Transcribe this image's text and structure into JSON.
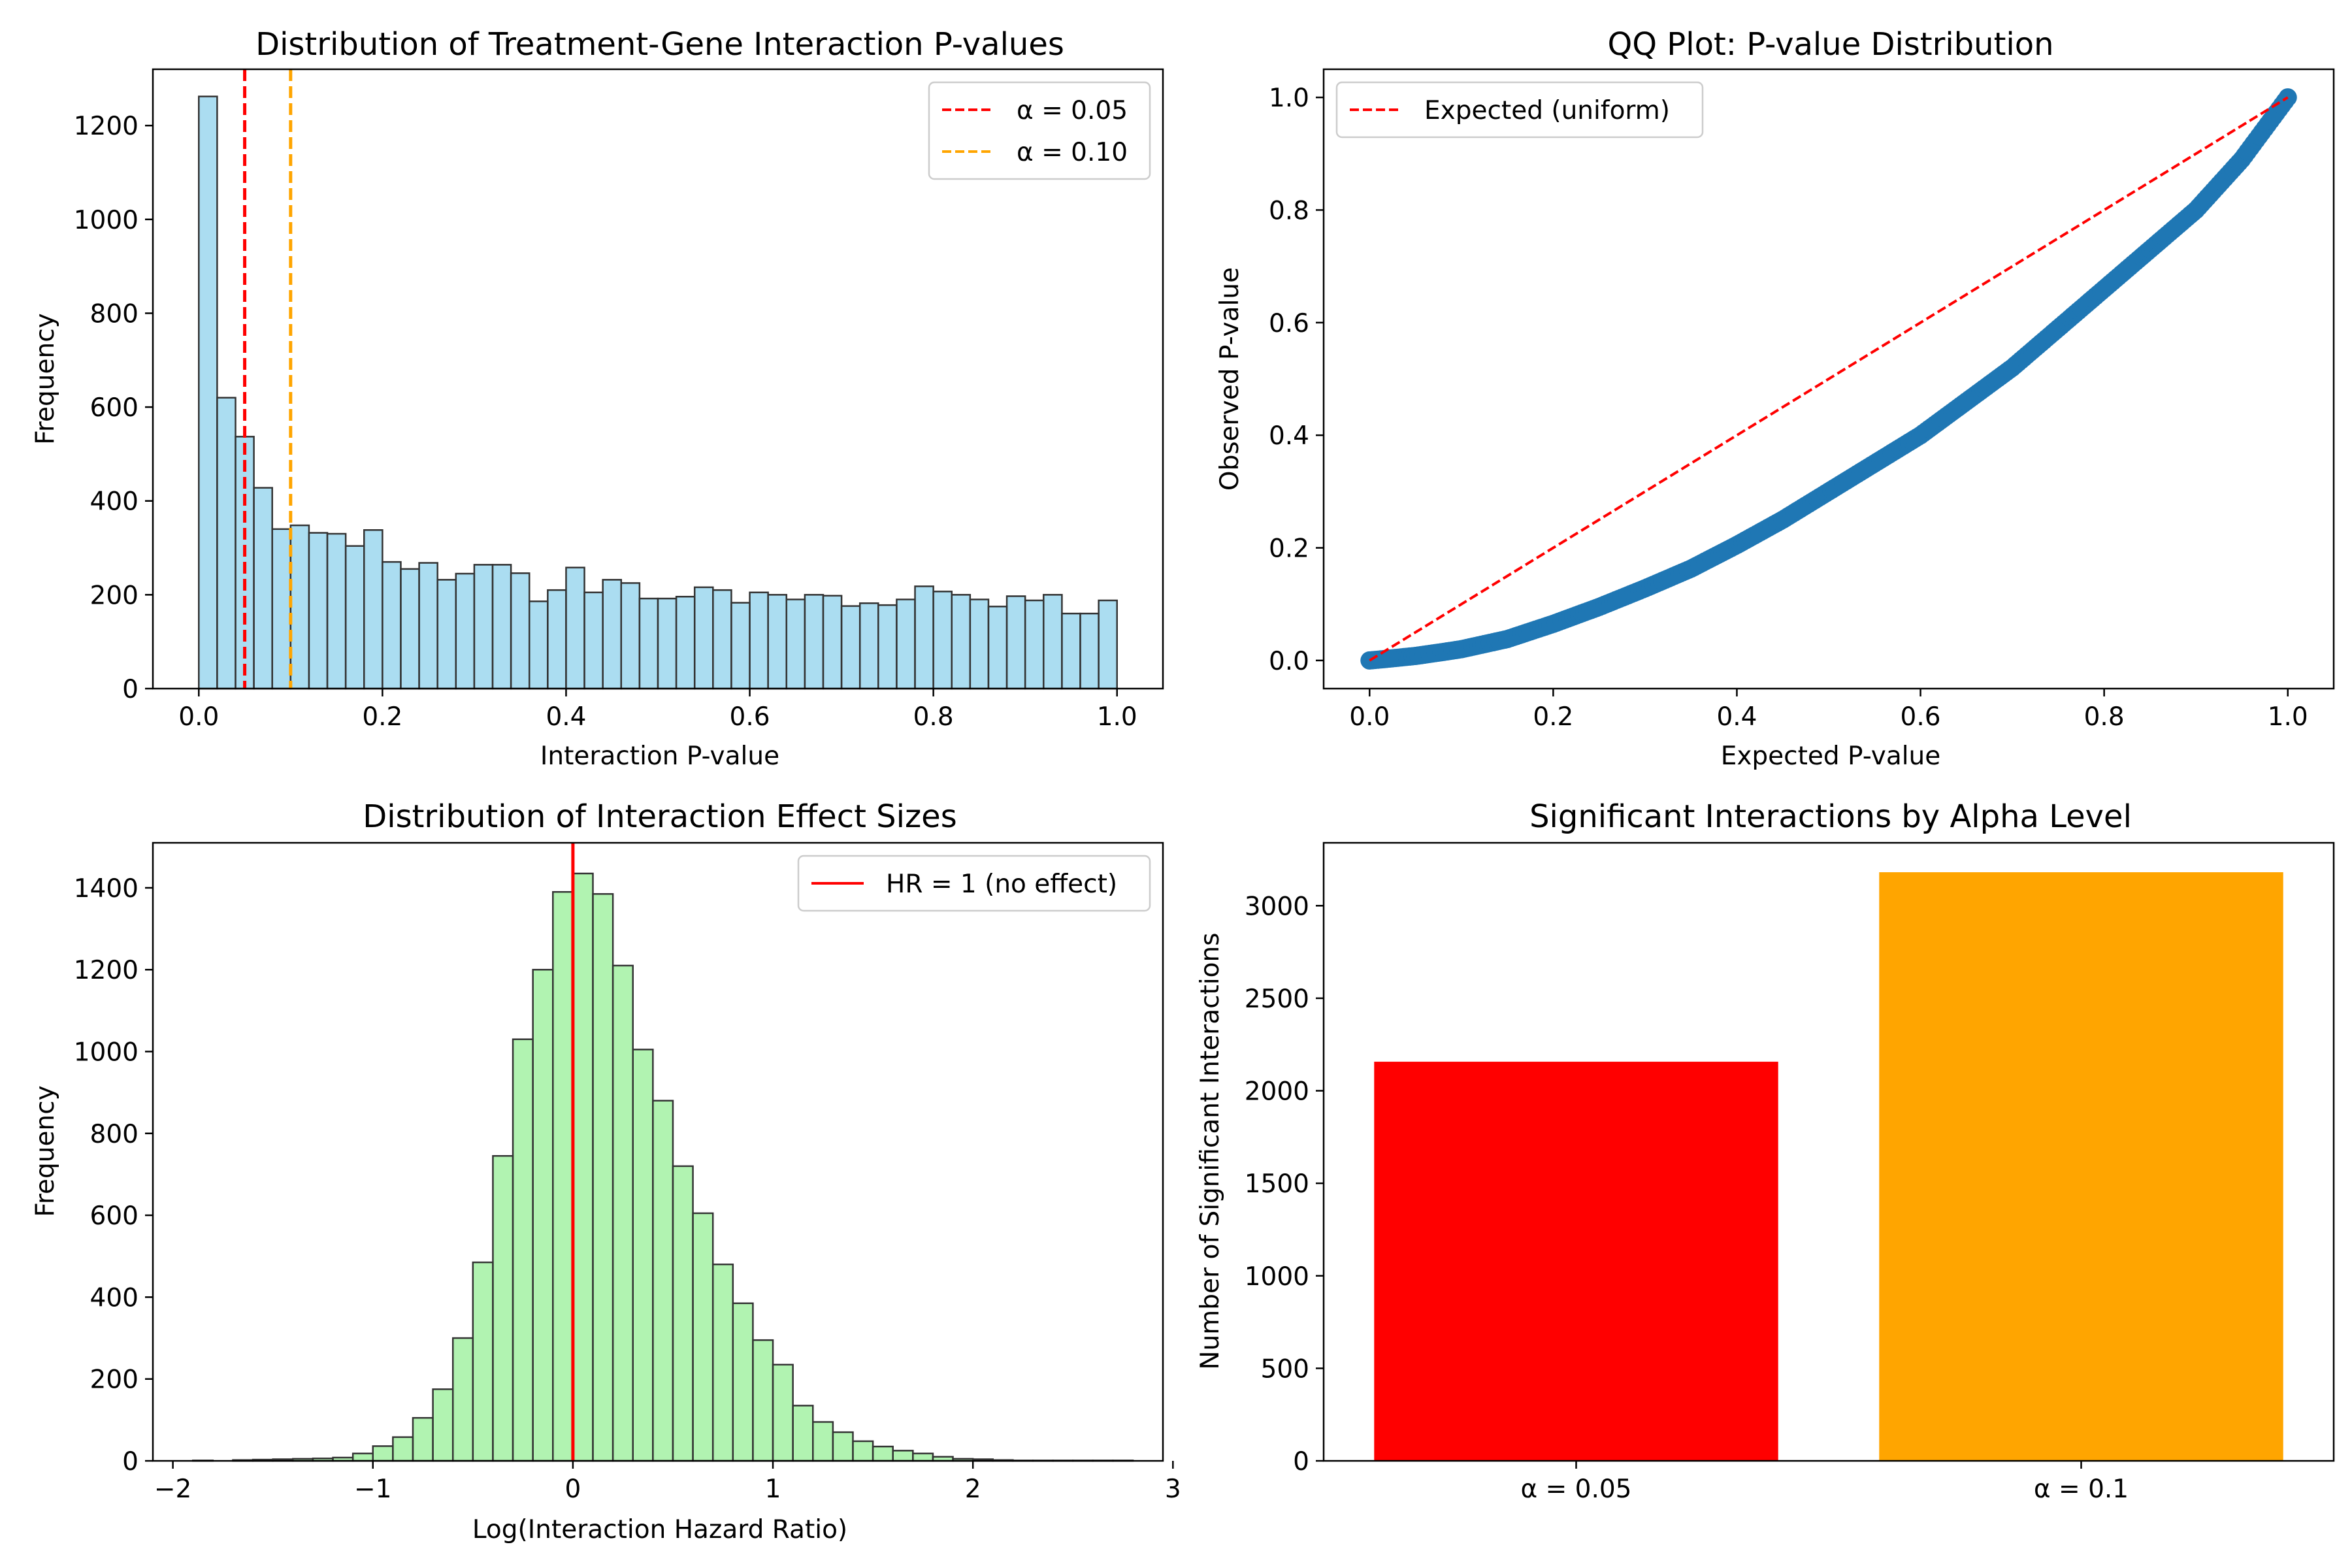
{
  "figure_background": "#ffffff",
  "chart_data": [
    {
      "type": "bar",
      "id": "pvalue-hist",
      "title": "Distribution of Treatment-Gene Interaction P-values",
      "xlabel": "Interaction P-value",
      "ylabel": "Frequency",
      "xlim": [
        -0.05,
        1.05
      ],
      "ylim": [
        0,
        1320
      ],
      "xticks": [
        0.0,
        0.2,
        0.4,
        0.6,
        0.8,
        1.0
      ],
      "xtick_labels": [
        "0.0",
        "0.2",
        "0.4",
        "0.6",
        "0.8",
        "1.0"
      ],
      "yticks": [
        0,
        200,
        400,
        600,
        800,
        1000,
        1200
      ],
      "ytick_labels": [
        "0",
        "200",
        "400",
        "600",
        "800",
        "1000",
        "1200"
      ],
      "bin_start": 0.0,
      "bin_width": 0.02,
      "values": [
        1262,
        620,
        537,
        428,
        340,
        348,
        332,
        330,
        304,
        338,
        270,
        255,
        268,
        232,
        245,
        264,
        264,
        246,
        186,
        210,
        258,
        205,
        232,
        225,
        192,
        192,
        196,
        216,
        210,
        183,
        205,
        200,
        190,
        200,
        198,
        176,
        182,
        178,
        190,
        218,
        207,
        200,
        190,
        175,
        197,
        188,
        200,
        160,
        160,
        188
      ],
      "bar_color": "#87ceeb",
      "edge_color": "#333333",
      "vlines": [
        {
          "x": 0.05,
          "color": "#ff0000",
          "style": "dashed",
          "label": "α = 0.05"
        },
        {
          "x": 0.1,
          "color": "#ffa500",
          "style": "dashed",
          "label": "α = 0.10"
        }
      ],
      "legend_position": "upper right",
      "grid": false
    },
    {
      "type": "scatter",
      "id": "qq-plot",
      "title": "QQ Plot: P-value Distribution",
      "xlabel": "Expected P-value",
      "ylabel": "Observed P-value",
      "xlim": [
        -0.05,
        1.05
      ],
      "ylim": [
        -0.05,
        1.05
      ],
      "xticks": [
        0.0,
        0.2,
        0.4,
        0.6,
        0.8,
        1.0
      ],
      "xtick_labels": [
        "0.0",
        "0.2",
        "0.4",
        "0.6",
        "0.8",
        "1.0"
      ],
      "yticks": [
        0.0,
        0.2,
        0.4,
        0.6,
        0.8,
        1.0
      ],
      "ytick_labels": [
        "0.0",
        "0.2",
        "0.4",
        "0.6",
        "0.8",
        "1.0"
      ],
      "curve_x": [
        0,
        0.02,
        0.05,
        0.08,
        0.1,
        0.15,
        0.2,
        0.25,
        0.3,
        0.35,
        0.4,
        0.45,
        0.5,
        0.55,
        0.6,
        0.65,
        0.7,
        0.75,
        0.8,
        0.85,
        0.9,
        0.95,
        1.0
      ],
      "curve_y": [
        0,
        0.003,
        0.008,
        0.015,
        0.02,
        0.038,
        0.065,
        0.095,
        0.128,
        0.163,
        0.205,
        0.25,
        0.3,
        0.35,
        0.4,
        0.46,
        0.52,
        0.59,
        0.66,
        0.73,
        0.8,
        0.89,
        1.0
      ],
      "point_color": "#1f77b4",
      "reference_line": {
        "from": [
          0,
          0
        ],
        "to": [
          1,
          1
        ],
        "color": "#ff0000",
        "style": "dashed",
        "label": "Expected (uniform)"
      },
      "legend_position": "upper left",
      "grid": false
    },
    {
      "type": "bar",
      "id": "effect-hist",
      "title": "Distribution of Interaction Effect Sizes",
      "xlabel": "Log(Interaction Hazard Ratio)",
      "ylabel": "Frequency",
      "xlim": [
        -2.1,
        2.95
      ],
      "ylim": [
        0,
        1510
      ],
      "xticks": [
        -2,
        -1,
        0,
        1,
        2,
        3
      ],
      "xtick_labels": [
        "−2",
        "−1",
        "0",
        "1",
        "2",
        "3"
      ],
      "yticks": [
        0,
        200,
        400,
        600,
        800,
        1000,
        1200,
        1400
      ],
      "ytick_labels": [
        "0",
        "200",
        "400",
        "600",
        "800",
        "1000",
        "1200",
        "1400"
      ],
      "bin_start": -1.9,
      "bin_width": 0.1,
      "values": [
        1,
        0,
        2,
        3,
        4,
        5,
        6,
        8,
        18,
        36,
        58,
        105,
        175,
        300,
        485,
        745,
        1030,
        1200,
        1390,
        1435,
        1385,
        1210,
        1005,
        880,
        720,
        605,
        480,
        385,
        295,
        235,
        135,
        95,
        70,
        48,
        35,
        25,
        18,
        10,
        5,
        4,
        2,
        1,
        1,
        1,
        1,
        1,
        1
      ],
      "bar_color": "#90ee90",
      "edge_color": "#333333",
      "vlines": [
        {
          "x": 0,
          "color": "#ff0000",
          "style": "solid",
          "label": "HR = 1 (no effect)"
        }
      ],
      "legend_position": "upper right",
      "grid": false
    },
    {
      "type": "bar",
      "id": "alpha-bars",
      "title": "Significant Interactions by Alpha Level",
      "xlabel": "",
      "ylabel": "Number of Significant Interactions",
      "ylim": [
        0,
        3340
      ],
      "categories": [
        "α = 0.05",
        "α = 0.1"
      ],
      "values": [
        2157,
        3181
      ],
      "colors": [
        "#ff0000",
        "#ffa500"
      ],
      "yticks": [
        0,
        500,
        1000,
        1500,
        2000,
        2500,
        3000
      ],
      "ytick_labels": [
        "0",
        "500",
        "1000",
        "1500",
        "2000",
        "2500",
        "3000"
      ],
      "grid": false
    }
  ]
}
